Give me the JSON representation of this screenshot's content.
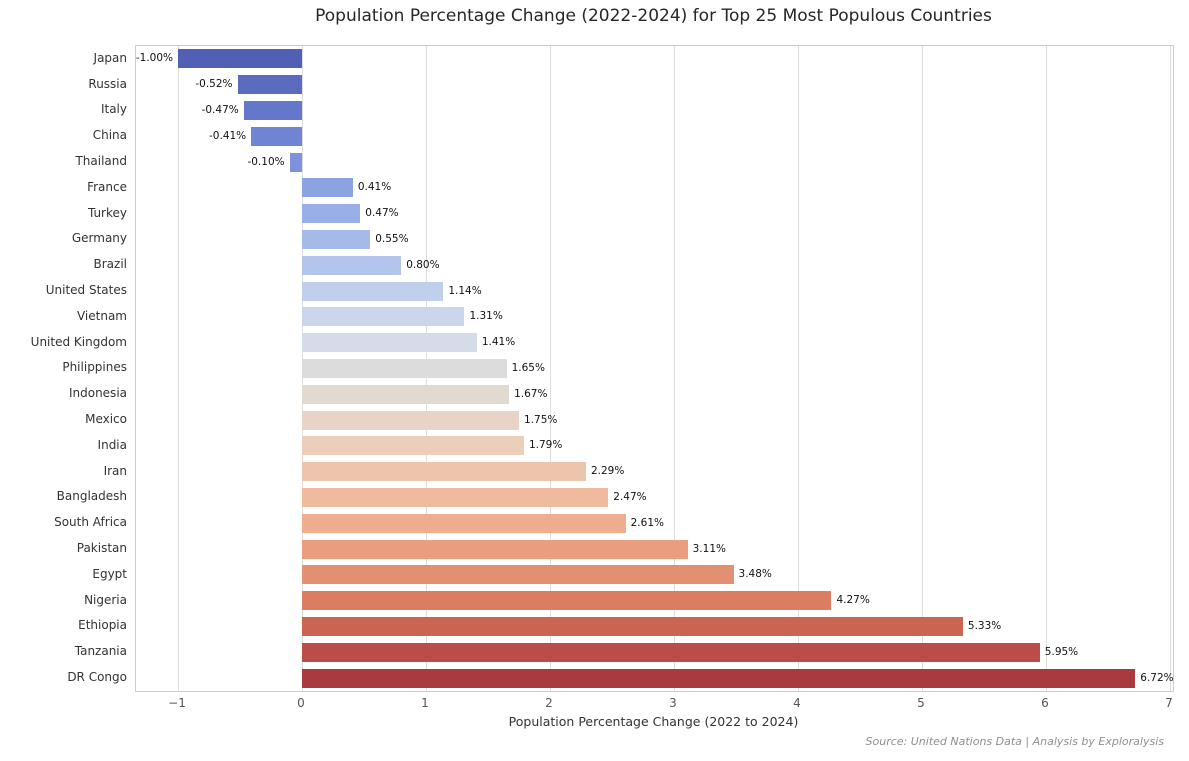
{
  "chart_data": {
    "type": "bar",
    "orientation": "horizontal",
    "title": "Population Percentage Change (2022-2024) for Top 25 Most Populous Countries",
    "xlabel": "Population Percentage Change (2022 to 2024)",
    "source": "Source: United Nations Data | Analysis by Exploralysis",
    "categories": [
      "Japan",
      "Russia",
      "Italy",
      "China",
      "Thailand",
      "France",
      "Turkey",
      "Germany",
      "Brazil",
      "United States",
      "Vietnam",
      "United Kingdom",
      "Philippines",
      "Indonesia",
      "Mexico",
      "India",
      "Iran",
      "Bangladesh",
      "South Africa",
      "Pakistan",
      "Egypt",
      "Nigeria",
      "Ethiopia",
      "Tanzania",
      "DR Congo"
    ],
    "values": [
      -1.0,
      -0.52,
      -0.47,
      -0.41,
      -0.1,
      0.41,
      0.47,
      0.55,
      0.8,
      1.14,
      1.31,
      1.41,
      1.65,
      1.67,
      1.75,
      1.79,
      2.29,
      2.47,
      2.61,
      3.11,
      3.48,
      4.27,
      5.33,
      5.95,
      6.72
    ],
    "value_labels": [
      "-1.00%",
      "-0.52%",
      "-0.47%",
      "-0.41%",
      "-0.10%",
      "0.41%",
      "0.47%",
      "0.55%",
      "0.80%",
      "1.14%",
      "1.31%",
      "1.41%",
      "1.65%",
      "1.67%",
      "1.75%",
      "1.79%",
      "2.29%",
      "2.47%",
      "2.61%",
      "3.11%",
      "3.48%",
      "4.27%",
      "5.33%",
      "5.95%",
      "6.72%"
    ],
    "bar_colors": [
      "#5160b5",
      "#5a6bc0",
      "#6477ca",
      "#7084d4",
      "#7e92dc",
      "#8ca3e2",
      "#99afe7",
      "#a6bae9",
      "#b3c5eb",
      "#c0cfec",
      "#cbd6ec",
      "#d4dbe9",
      "#dcdcdc",
      "#e2d9d1",
      "#e7d4c6",
      "#ebcfbb",
      "#edc4ac",
      "#efba9d",
      "#eead8e",
      "#e99e80",
      "#e38f71",
      "#da7d61",
      "#c96551",
      "#ba4d47",
      "#a93a40"
    ],
    "xticks": [
      -1,
      0,
      1,
      2,
      3,
      4,
      5,
      6,
      7
    ],
    "xtick_labels": [
      "−1",
      "0",
      "1",
      "2",
      "3",
      "4",
      "5",
      "6",
      "7"
    ],
    "xlim": [
      -1.34,
      7.02
    ],
    "grid": true,
    "grid_color": "#dddddd",
    "colormap": "coolwarm",
    "legend": false
  }
}
